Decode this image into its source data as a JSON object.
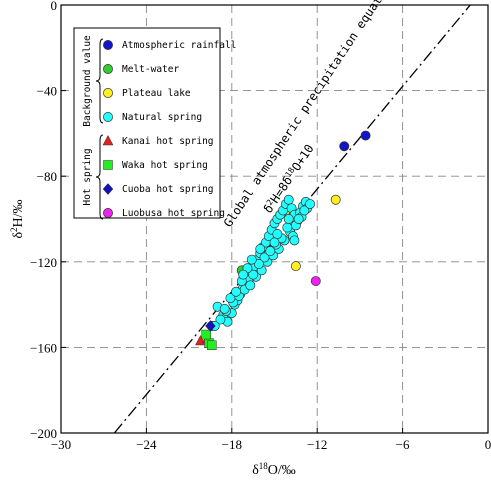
{
  "chart_data": {
    "type": "scatter",
    "xlabel": "δ18O/‰",
    "ylabel": "δ2H/‰",
    "xlim": [
      -30,
      0
    ],
    "ylim": [
      -200,
      0
    ],
    "x_ticks": [
      -30,
      -24,
      -18,
      -12,
      -6,
      0
    ],
    "y_ticks": [
      0,
      -40,
      -80,
      -120,
      -160,
      -200
    ],
    "x_tick_labels": [
      "−30",
      "−24",
      "−18",
      "−12",
      "−6",
      "0"
    ],
    "y_tick_labels": [
      "0",
      "−40",
      "−80",
      "−120",
      "−160",
      "−200"
    ],
    "grid": true,
    "legend_position": "top-left",
    "legend_groups": [
      "Background value",
      "Hot spring"
    ],
    "gmwl": {
      "slope": 8,
      "intercept": 10,
      "label_line1": "Global atmospheric precipitation equation",
      "label_line2": "δ2H=8δ18O+10"
    },
    "series": [
      {
        "name": "Atmospheric rainfall",
        "group": "Background value",
        "marker": "circle",
        "color": "#1414c8",
        "x": [
          -10.1,
          -8.6,
          -19.4
        ],
        "y": [
          -66,
          -61,
          -150
        ]
      },
      {
        "name": "Melt-water",
        "group": "Background value",
        "marker": "circle",
        "color": "#33cc33",
        "x": [
          -17.3
        ],
        "y": [
          -124
        ]
      },
      {
        "name": "Plateau lake",
        "group": "Background value",
        "marker": "circle",
        "color": "#ffee22",
        "x": [
          -14.2,
          -13.5,
          -10.7
        ],
        "y": [
          -96,
          -122,
          -91
        ]
      },
      {
        "name": "Natural spring",
        "group": "Background value",
        "marker": "circle",
        "color": "#22ffff",
        "x": [
          -19.0,
          -18.6,
          -18.3,
          -18.0,
          -17.8,
          -17.6,
          -17.4,
          -17.2,
          -17.0,
          -16.8,
          -16.6,
          -16.4,
          -16.2,
          -16.0,
          -15.8,
          -15.6,
          -15.4,
          -15.2,
          -15.0,
          -14.8,
          -14.6,
          -14.4,
          -14.2,
          -14.0,
          -13.8,
          -13.6,
          -13.4,
          -13.2,
          -13.0,
          -12.8,
          -18.8,
          -18.4,
          -17.9,
          -17.5,
          -17.1,
          -16.7,
          -16.3,
          -15.9,
          -15.5,
          -15.1,
          -14.7,
          -14.3,
          -13.9,
          -13.5,
          -13.1,
          -12.7,
          -18.1,
          -17.3,
          -16.5,
          -15.7,
          -14.9,
          -14.1,
          -13.3,
          -16.9,
          -15.3,
          -13.7,
          -17.7,
          -16.1,
          -14.5,
          -12.9,
          -19.2,
          -18.5,
          -17.2,
          -16.0,
          -14.8,
          -13.6,
          -12.5,
          -15.0,
          -16.6,
          -14.0
        ],
        "y": [
          -141,
          -145,
          -148,
          -144,
          -140,
          -138,
          -135,
          -132,
          -130,
          -128,
          -125,
          -122,
          -119,
          -116,
          -113,
          -111,
          -108,
          -105,
          -102,
          -100,
          -98,
          -96,
          -93,
          -91,
          -95,
          -98,
          -101,
          -97,
          -94,
          -92,
          -147,
          -143,
          -139,
          -136,
          -133,
          -131,
          -127,
          -124,
          -120,
          -117,
          -114,
          -110,
          -106,
          -103,
          -99,
          -95,
          -137,
          -129,
          -126,
          -118,
          -112,
          -104,
          -100,
          -123,
          -115,
          -108,
          -134,
          -121,
          -109,
          -96,
          -150,
          -142,
          -126,
          -114,
          -107,
          -110,
          -93,
          -111,
          -119,
          -100
        ]
      },
      {
        "name": "Kanai hot spring",
        "group": "Hot spring",
        "marker": "triangle",
        "color": "#dd2222",
        "x": [
          -20.2,
          -19.7
        ],
        "y": [
          -157,
          -156
        ]
      },
      {
        "name": "Waka hot spring",
        "group": "Hot spring",
        "marker": "square",
        "color": "#22ee22",
        "x": [
          -19.6,
          -19.4,
          -19.8
        ],
        "y": [
          -158,
          -159,
          -154
        ]
      },
      {
        "name": "Cuoba hot spring",
        "group": "Hot spring",
        "marker": "diamond",
        "color": "#1414b4",
        "x": [
          -19.5
        ],
        "y": [
          -150
        ]
      },
      {
        "name": "Luobusa hot spring",
        "group": "Hot spring",
        "marker": "circle",
        "color": "#ee22ee",
        "x": [
          -12.1
        ],
        "y": [
          -129
        ]
      }
    ]
  }
}
